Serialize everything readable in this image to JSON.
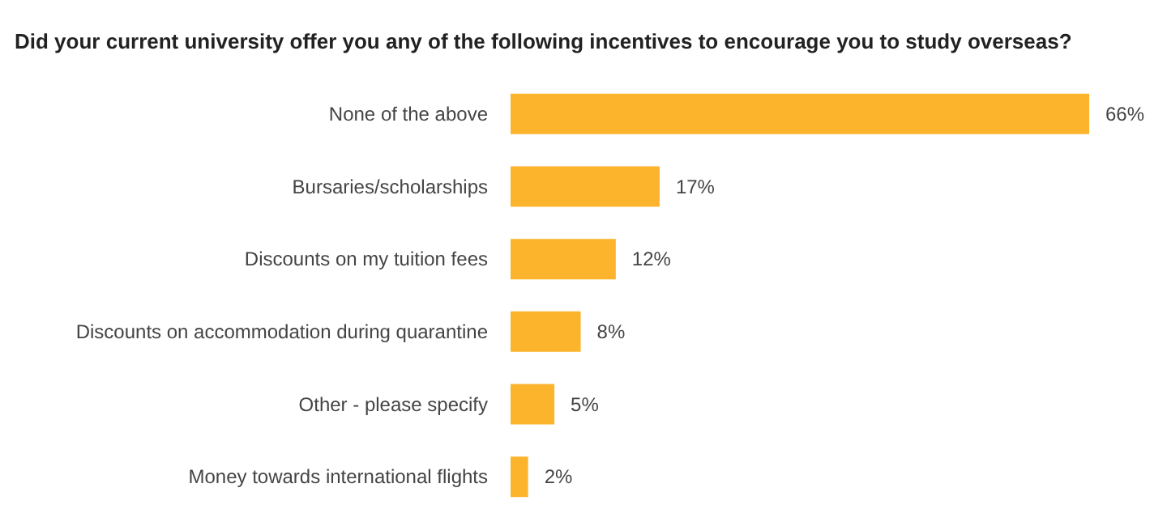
{
  "chart_data": {
    "type": "bar",
    "orientation": "horizontal",
    "title": "Did your current university offer you any of the following incentives to encourage you to study overseas?",
    "categories": [
      "None of the above",
      "Bursaries/scholarships",
      "Discounts on my tuition fees",
      "Discounts on accommodation during quarantine",
      "Other - please specify",
      "Money towards international flights"
    ],
    "values": [
      66,
      17,
      12,
      8,
      5,
      2
    ],
    "value_labels": [
      "66%",
      "17%",
      "12%",
      "8%",
      "5%",
      "2%"
    ],
    "color": "#fbb42c"
  }
}
